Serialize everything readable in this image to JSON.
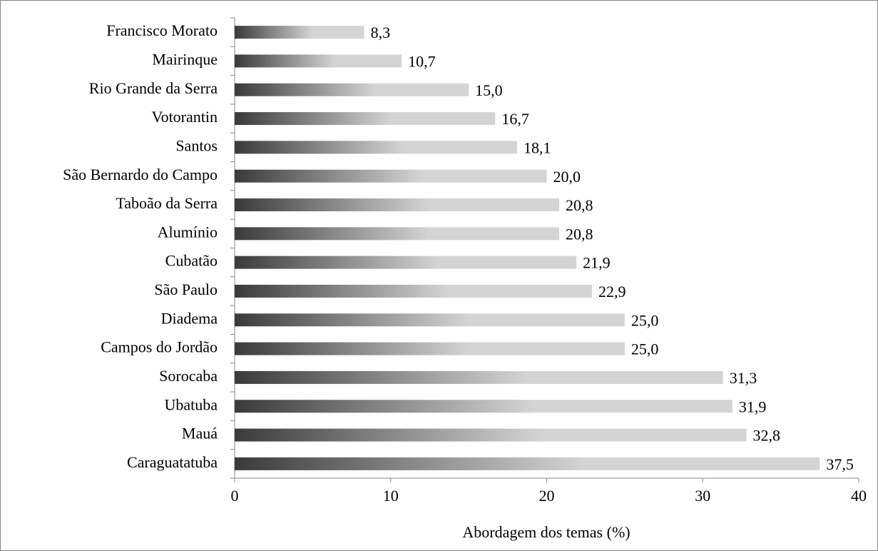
{
  "chart_data": {
    "type": "bar",
    "orientation": "horizontal",
    "categories": [
      "Francisco Morato",
      "Mairinque",
      "Rio Grande da Serra",
      "Votorantin",
      "Santos",
      "São Bernardo do Campo",
      "Taboão da Serra",
      "Alumínio",
      "Cubatão",
      "São Paulo",
      "Diadema",
      "Campos do Jordão",
      "Sorocaba",
      "Ubatuba",
      "Mauá",
      "Caraguatatuba"
    ],
    "values": [
      8.3,
      10.7,
      15.0,
      16.7,
      18.1,
      20.0,
      20.8,
      20.8,
      21.9,
      22.9,
      25.0,
      25.0,
      31.3,
      31.9,
      32.8,
      37.5
    ],
    "value_labels": [
      "8,3",
      "10,7",
      "15,0",
      "16,7",
      "18,1",
      "20,0",
      "20,8",
      "20,8",
      "21,9",
      "22,9",
      "25,0",
      "25,0",
      "31,3",
      "31,9",
      "32,8",
      "37,5"
    ],
    "color": [
      "#3a3a3a",
      "#d4d4d4"
    ],
    "xlabel": "Abordagem dos temas (%)",
    "xlim": [
      0,
      40
    ],
    "xticks": [
      0,
      10,
      20,
      30,
      40
    ],
    "grid": false
  }
}
